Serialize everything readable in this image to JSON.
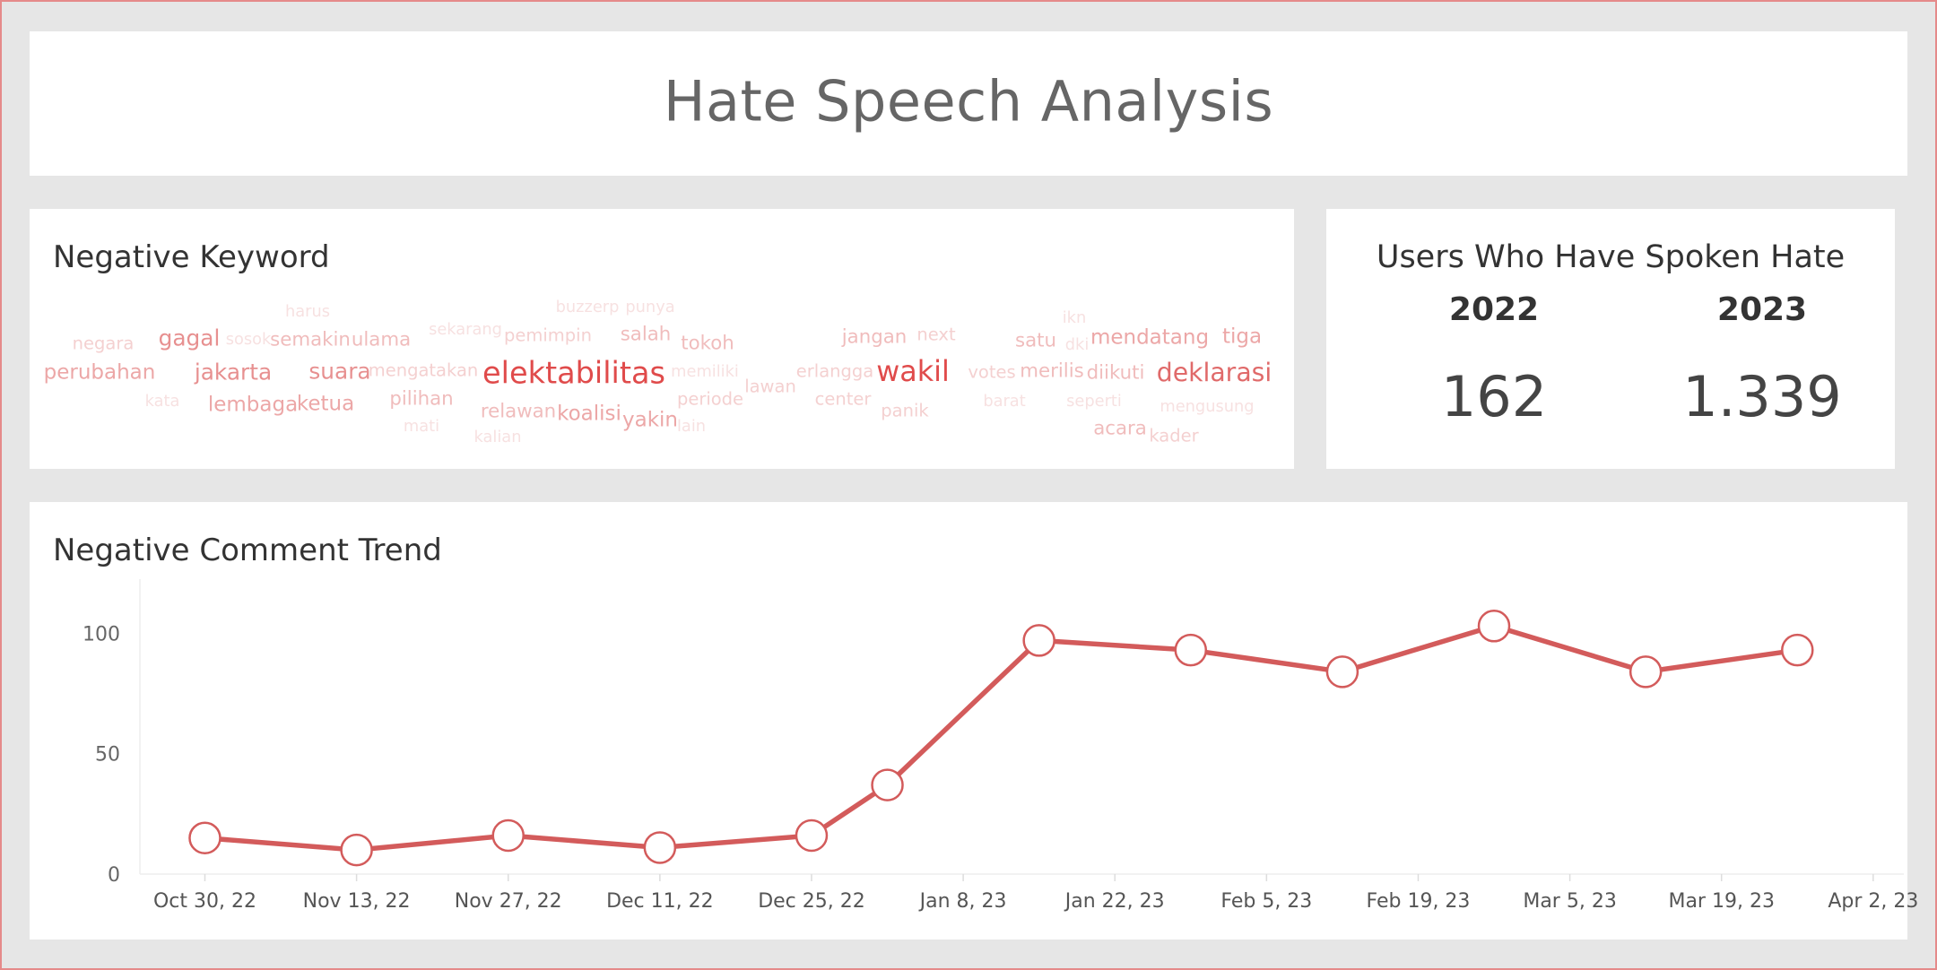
{
  "dashboard_title": "Hate Speech Analysis",
  "colors": {
    "accent": "#d35b5b",
    "background": "#e6e6e6",
    "panel": "#ffffff"
  },
  "keyword_panel": {
    "title": "Negative Keyword",
    "words": [
      {
        "text": "harus",
        "weight": 1
      },
      {
        "text": "buzzerp",
        "weight": 1
      },
      {
        "text": "punya",
        "weight": 1
      },
      {
        "text": "ikn",
        "weight": 1
      },
      {
        "text": "negara",
        "weight": 2
      },
      {
        "text": "gagal",
        "weight": 5
      },
      {
        "text": "sosok",
        "weight": 1
      },
      {
        "text": "semakin",
        "weight": 3
      },
      {
        "text": "ulama",
        "weight": 3
      },
      {
        "text": "sekarang",
        "weight": 1
      },
      {
        "text": "pemimpin",
        "weight": 2
      },
      {
        "text": "salah",
        "weight": 3
      },
      {
        "text": "tokoh",
        "weight": 3
      },
      {
        "text": "jangan",
        "weight": 3
      },
      {
        "text": "next",
        "weight": 2
      },
      {
        "text": "satu",
        "weight": 3
      },
      {
        "text": "dki",
        "weight": 1
      },
      {
        "text": "mendatang",
        "weight": 4
      },
      {
        "text": "tiga",
        "weight": 4
      },
      {
        "text": "perubahan",
        "weight": 4
      },
      {
        "text": "jakarta",
        "weight": 5
      },
      {
        "text": "suara",
        "weight": 5
      },
      {
        "text": "mengatakan",
        "weight": 2
      },
      {
        "text": "elektabilitas",
        "weight": 10
      },
      {
        "text": "memiliki",
        "weight": 1
      },
      {
        "text": "erlangga",
        "weight": 2
      },
      {
        "text": "wakil",
        "weight": 9
      },
      {
        "text": "votes",
        "weight": 2
      },
      {
        "text": "merilis",
        "weight": 3
      },
      {
        "text": "diikuti",
        "weight": 3
      },
      {
        "text": "deklarasi",
        "weight": 7
      },
      {
        "text": "lawan",
        "weight": 2
      },
      {
        "text": "kata",
        "weight": 1
      },
      {
        "text": "lembaga",
        "weight": 4
      },
      {
        "text": "ketua",
        "weight": 4
      },
      {
        "text": "pilihan",
        "weight": 3
      },
      {
        "text": "periode",
        "weight": 2
      },
      {
        "text": "center",
        "weight": 2
      },
      {
        "text": "barat",
        "weight": 1
      },
      {
        "text": "seperti",
        "weight": 1
      },
      {
        "text": "mengusung",
        "weight": 1
      },
      {
        "text": "relawan",
        "weight": 3
      },
      {
        "text": "koalisi",
        "weight": 4
      },
      {
        "text": "yakin",
        "weight": 4
      },
      {
        "text": "panik",
        "weight": 2
      },
      {
        "text": "mati",
        "weight": 1
      },
      {
        "text": "lain",
        "weight": 1
      },
      {
        "text": "acara",
        "weight": 3
      },
      {
        "text": "kader",
        "weight": 2
      },
      {
        "text": "kalian",
        "weight": 1
      }
    ]
  },
  "users_panel": {
    "title": "Users Who Have Spoken Hate",
    "years": [
      {
        "year": "2022",
        "value": "162"
      },
      {
        "year": "2023",
        "value": "1.339"
      }
    ]
  },
  "trend_panel": {
    "title": "Negative Comment Trend"
  },
  "chart_data": {
    "type": "line",
    "title": "Negative Comment Trend",
    "xlabel": "",
    "ylabel": "",
    "x_axis_type": "date",
    "x_range": [
      "2022-10-24",
      "2023-04-04"
    ],
    "y_range": [
      0,
      118
    ],
    "y_ticks": [
      0,
      50,
      100
    ],
    "x_tick_dates": [
      "2022-10-30",
      "2022-11-13",
      "2022-11-27",
      "2022-12-11",
      "2022-12-25",
      "2023-01-08",
      "2023-01-22",
      "2023-02-05",
      "2023-02-19",
      "2023-03-05",
      "2023-03-19",
      "2023-04-02"
    ],
    "x_tick_labels": [
      "Oct 30, 22",
      "Nov 13, 22",
      "Nov 27, 22",
      "Dec 11, 22",
      "Dec 25, 22",
      "Jan 8, 23",
      "Jan 22, 23",
      "Feb 5, 23",
      "Feb 19, 23",
      "Mar 5, 23",
      "Mar 19, 23",
      "Apr 2, 23"
    ],
    "grid": false,
    "series": [
      {
        "color": "#d35b5b",
        "points": [
          {
            "x": "2022-10-30",
            "y": 15
          },
          {
            "x": "2022-11-13",
            "y": 10
          },
          {
            "x": "2022-11-27",
            "y": 16
          },
          {
            "x": "2022-12-11",
            "y": 11
          },
          {
            "x": "2022-12-25",
            "y": 16
          },
          {
            "x": "2023-01-01",
            "y": 37
          },
          {
            "x": "2023-01-15",
            "y": 97
          },
          {
            "x": "2023-01-29",
            "y": 93
          },
          {
            "x": "2023-02-12",
            "y": 84
          },
          {
            "x": "2023-02-26",
            "y": 103
          },
          {
            "x": "2023-03-12",
            "y": 84
          },
          {
            "x": "2023-03-26",
            "y": 93
          }
        ]
      }
    ]
  }
}
